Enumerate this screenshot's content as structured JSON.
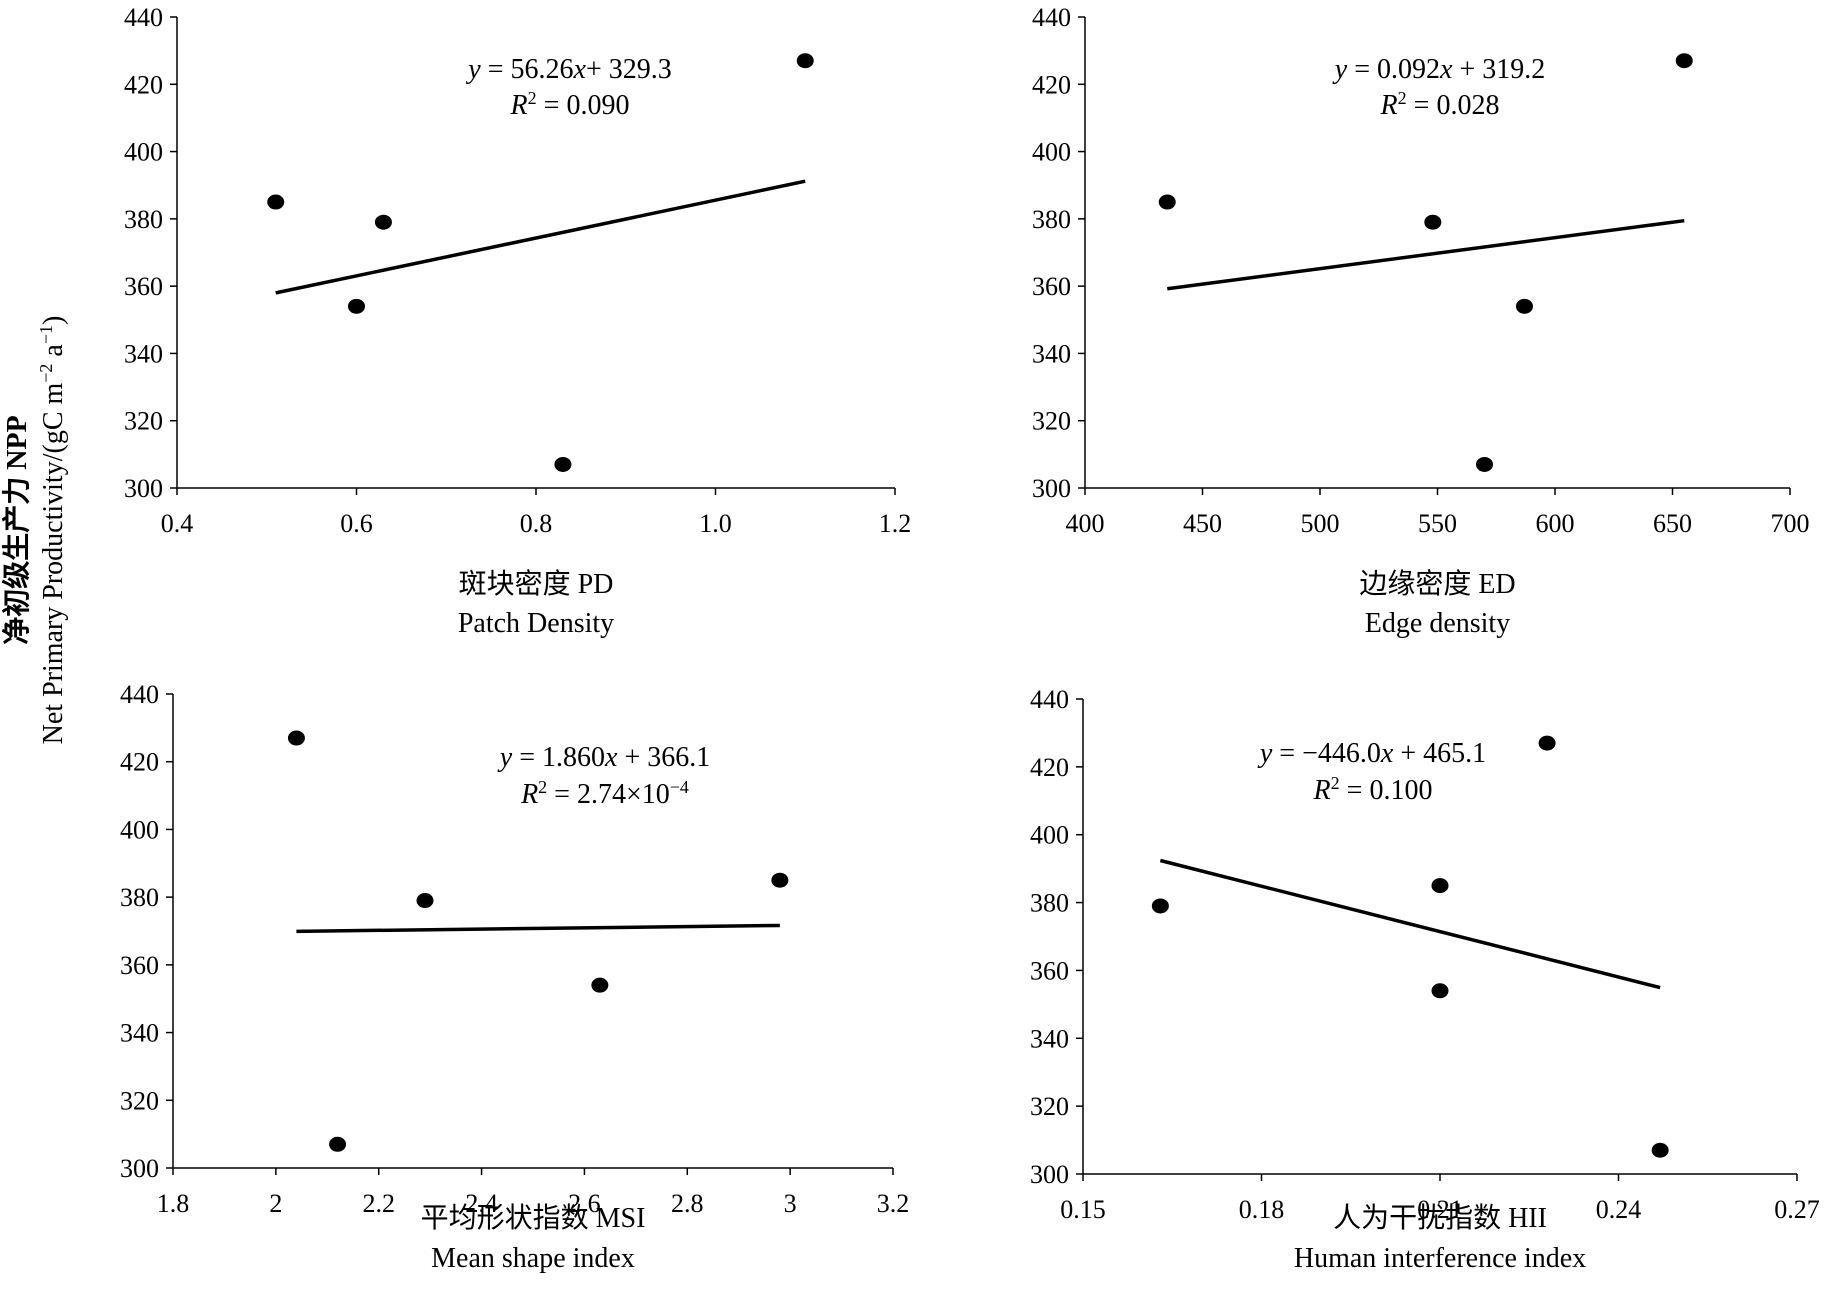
{
  "figure": {
    "y_label_zh": "净初级生产力 NPP",
    "y_label_en_prefix": "Net Primary Productivity/(gC m",
    "y_label_sup1": "−2",
    "y_label_mid": " a",
    "y_label_sup2": "−1",
    "y_label_end": ")"
  },
  "chart_data": [
    {
      "type": "scatter",
      "xlabel_zh": "斑块密度  PD",
      "xlabel_en": "Patch Density",
      "xlim": [
        0.4,
        1.2
      ],
      "ylim": [
        300,
        440
      ],
      "xticks": [
        "0.4",
        "0.6",
        "0.8",
        "1.0",
        "1.2"
      ],
      "yticks": [
        "300",
        "320",
        "340",
        "360",
        "380",
        "400",
        "420",
        "440"
      ],
      "points": [
        {
          "x": 0.51,
          "y": 385
        },
        {
          "x": 0.6,
          "y": 354
        },
        {
          "x": 0.63,
          "y": 379
        },
        {
          "x": 0.83,
          "y": 307
        },
        {
          "x": 1.1,
          "y": 427
        }
      ],
      "fit": {
        "slope": 56.26,
        "intercept": 329.3,
        "x_range": [
          0.51,
          1.1
        ]
      },
      "equation": {
        "y_var": "y",
        "eq_mid": " = 56.26",
        "x_var": "x",
        "eq_end": "+ 329.3",
        "r_var": "R",
        "r_sup": "2",
        "r_end": " = 0.090"
      }
    },
    {
      "type": "scatter",
      "xlabel_zh": "边缘密度 ED",
      "xlabel_en": "Edge density",
      "xlim": [
        400,
        700
      ],
      "ylim": [
        300,
        440
      ],
      "xticks": [
        "400",
        "450",
        "500",
        "550",
        "600",
        "650",
        "700"
      ],
      "yticks": [
        "300",
        "320",
        "340",
        "360",
        "380",
        "400",
        "420",
        "440"
      ],
      "points": [
        {
          "x": 435,
          "y": 385
        },
        {
          "x": 548,
          "y": 379
        },
        {
          "x": 570,
          "y": 307
        },
        {
          "x": 587,
          "y": 354
        },
        {
          "x": 655,
          "y": 427
        }
      ],
      "fit": {
        "slope": 0.092,
        "intercept": 319.2,
        "x_range": [
          435,
          655
        ]
      },
      "equation": {
        "y_var": "y",
        "eq_mid": " = 0.092",
        "x_var": "x",
        "eq_end": " + 319.2",
        "r_var": "R",
        "r_sup": "2",
        "r_end": " = 0.028"
      }
    },
    {
      "type": "scatter",
      "xlabel_zh": "平均形状指数  MSI",
      "xlabel_en": "Mean shape index",
      "xlim": [
        1.8,
        3.2
      ],
      "ylim": [
        300,
        440
      ],
      "xticks": [
        "1.8",
        "2",
        "2.2",
        "2.4",
        "2.6",
        "2.8",
        "3",
        "3.2"
      ],
      "yticks": [
        "300",
        "320",
        "340",
        "360",
        "380",
        "400",
        "420",
        "440"
      ],
      "points": [
        {
          "x": 2.04,
          "y": 427
        },
        {
          "x": 2.12,
          "y": 307
        },
        {
          "x": 2.29,
          "y": 379
        },
        {
          "x": 2.63,
          "y": 354
        },
        {
          "x": 2.98,
          "y": 385
        }
      ],
      "fit": {
        "slope": 1.86,
        "intercept": 366.1,
        "x_range": [
          2.04,
          2.98
        ]
      },
      "equation": {
        "y_var": "y",
        "eq_mid": " = 1.860",
        "x_var": "x",
        "eq_end": " + 366.1",
        "r_var": "R",
        "r_sup": "2",
        "r_end": " = 2.74×10",
        "r_exp": "−4"
      }
    },
    {
      "type": "scatter",
      "xlabel_zh": "人为干扰指数 HII",
      "xlabel_en": "Human interference index",
      "xlim": [
        0.15,
        0.27
      ],
      "ylim": [
        300,
        440
      ],
      "xticks": [
        "0.15",
        "0.18",
        "0.21",
        "0.24",
        "0.27"
      ],
      "yticks": [
        "300",
        "320",
        "340",
        "360",
        "380",
        "400",
        "420",
        "440"
      ],
      "points": [
        {
          "x": 0.163,
          "y": 379
        },
        {
          "x": 0.21,
          "y": 385
        },
        {
          "x": 0.21,
          "y": 354
        },
        {
          "x": 0.228,
          "y": 427
        },
        {
          "x": 0.247,
          "y": 307
        }
      ],
      "fit": {
        "slope": -446.0,
        "intercept": 465.1,
        "x_range": [
          0.163,
          0.247
        ]
      },
      "equation": {
        "y_var": "y",
        "eq_mid": " = −446.0",
        "x_var": "x",
        "eq_end": " +  465.1",
        "r_var": "R",
        "r_sup": "2",
        "r_end": " = 0.100"
      }
    }
  ]
}
